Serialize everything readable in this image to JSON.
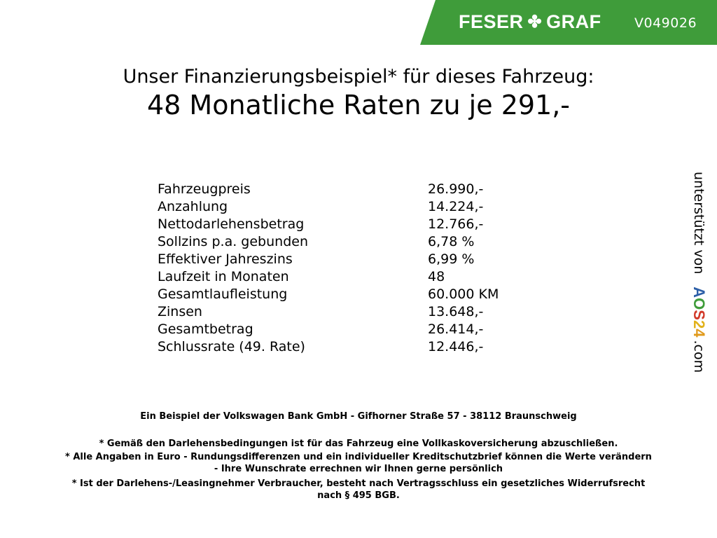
{
  "header": {
    "brand_left": "FESER",
    "brand_right": "GRAF",
    "vehicle_code": "V049026",
    "accent": "#3f9c3a"
  },
  "title": {
    "line1": "Unser Finanzierungsbeispiel* für dieses Fahrzeug:",
    "line2": "48 Monatliche Raten zu je 291,-"
  },
  "rows": [
    {
      "label": "Fahrzeugpreis",
      "value": "26.990,-"
    },
    {
      "label": "Anzahlung",
      "value": "14.224,-"
    },
    {
      "label": "Nettodarlehensbetrag",
      "value": "12.766,-"
    },
    {
      "label": "Sollzins p.a. gebunden",
      "value": "6,78 %"
    },
    {
      "label": "Effektiver Jahreszins",
      "value": "6,99 %"
    },
    {
      "label": "Laufzeit in Monaten",
      "value": "48"
    },
    {
      "label": "Gesamtlaufleistung",
      "value": "60.000 KM"
    },
    {
      "label": "Zinsen",
      "value": "13.648,-"
    },
    {
      "label": "Gesamtbetrag",
      "value": "26.414,-"
    },
    {
      "label": "Schlussrate (49. Rate)",
      "value": "12.446,-"
    }
  ],
  "footer": {
    "bank": "Ein Beispiel der Volkswagen Bank GmbH - Gifhorner Straße 57 - 38112 Braunschweig",
    "note1": "* Gemäß den Darlehensbedingungen ist für das Fahrzeug eine Vollkaskoversicherung abzuschließen.",
    "note2a": "* Alle Angaben in Euro - Rundungsdifferenzen und ein individueller Kreditschutzbrief können die Werte verändern",
    "note2b": "- Ihre Wunschrate errechnen wir Ihnen gerne persönlich",
    "note3a": "* Ist der Darlehens-/Leasingnehmer Verbraucher, besteht nach Vertragsschluss ein gesetzliches Widerrufsrecht",
    "note3b": "nach § 495 BGB."
  },
  "side": {
    "text": "unterstützt von",
    "logo": [
      "A",
      "O",
      "S",
      "2",
      "4"
    ],
    "suffix": ".com"
  }
}
